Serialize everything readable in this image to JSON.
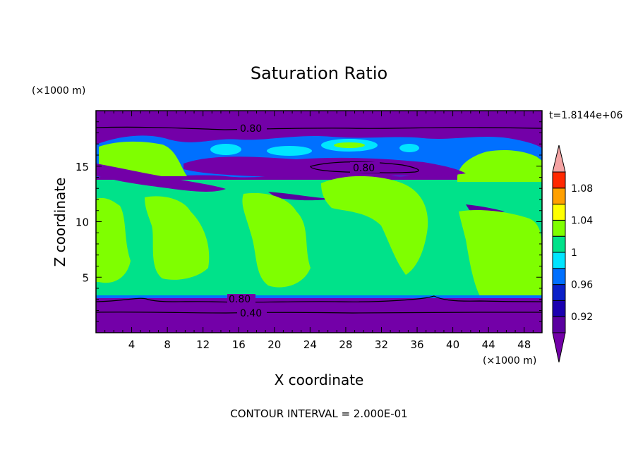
{
  "chart_data": {
    "type": "heatmap",
    "title": "Saturation Ratio",
    "xlabel": "X coordinate",
    "ylabel": "Z coordinate",
    "x_unit": "(×1000 m)",
    "y_unit": "(×1000 m)",
    "time_label": "t=1.8144e+06",
    "footer": "CONTOUR INTERVAL = 2.000E-01",
    "xlim": [
      0,
      50
    ],
    "ylim": [
      0,
      20
    ],
    "x_ticks": [
      "4",
      "8",
      "12",
      "16",
      "20",
      "24",
      "28",
      "32",
      "36",
      "40",
      "44",
      "48"
    ],
    "y_ticks": [
      "5",
      "10",
      "15"
    ],
    "colorbar": {
      "labels": [
        "0.92",
        "0.96",
        "1",
        "1.04",
        "1.08"
      ],
      "levels": [
        0.9,
        0.92,
        0.94,
        0.96,
        0.98,
        1.0,
        1.02,
        1.04,
        1.06,
        1.08,
        1.1
      ],
      "colors": [
        "#7300a8",
        "#5a00a0",
        "#1a00b0",
        "#0a20c8",
        "#0070ff",
        "#00e5ff",
        "#00e28a",
        "#7fff00",
        "#ffff00",
        "#ffa000",
        "#ff2800",
        "#f4a3a3"
      ]
    },
    "contour_labels": [
      "0.80",
      "0.80",
      "0.80",
      "0.40"
    ],
    "grid": false
  }
}
